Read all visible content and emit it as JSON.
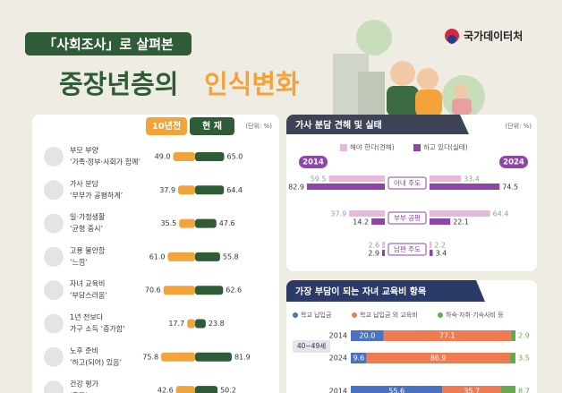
{
  "header": {
    "subtitle": "「사회조사」로 살펴본",
    "title_main": "중장년층의",
    "title_accent": "인식변화",
    "logo": "국가데이터처"
  },
  "chart_data": [
    {
      "type": "butterfly",
      "unit": "(단위: %)",
      "categories": [
        [
          "부모 부양",
          "‘가족·정부·사회가 함께’"
        ],
        [
          "가사 분담",
          "‘부부가 공평하게’"
        ],
        [
          "일·가정생활",
          "‘균형 중시’"
        ],
        [
          "고용 불안함",
          "‘느낌’"
        ],
        [
          "자녀 교육비",
          "‘부담스러움’"
        ],
        [
          "1년 전보다",
          "가구 소득 ‘증가함’"
        ],
        [
          "노후 준비",
          "‘하고(되어) 있음’"
        ],
        [
          "건강 평가",
          "‘좋음’"
        ]
      ],
      "series": [
        {
          "name": "10년전",
          "color": "#f2a33a",
          "values": [
            49.0,
            37.9,
            35.5,
            61.0,
            70.6,
            17.7,
            75.8,
            42.6
          ],
          "value_labels": [
            "49.0",
            "37.9",
            "35.5",
            "61.0",
            "70.6",
            "17.7",
            "75.8",
            "42.6"
          ]
        },
        {
          "name": "현 재",
          "color": "#2f5b36",
          "values": [
            65.0,
            64.4,
            47.6,
            55.8,
            62.6,
            23.8,
            81.9,
            50.2
          ],
          "value_labels": [
            "65.0",
            "64.4",
            "47.6",
            "55.8",
            "62.6",
            "23.8",
            "81.9",
            "50.2"
          ]
        }
      ]
    },
    {
      "type": "butterfly-grouped",
      "title": "가사 분담 견해 및 실태",
      "unit": "(단위: %)",
      "categories": [
        "아내 주도",
        "부부 공평",
        "남편 주도"
      ],
      "series": [
        {
          "name": "해야 한다(견해)",
          "color": "#e9b6dc"
        },
        {
          "name": "하고 있다(실태)",
          "color": "#8e44a8"
        }
      ],
      "panels": [
        {
          "label": "2014",
          "values": [
            [
              59.5,
              37.9,
              2.6
            ],
            [
              82.9,
              14.2,
              2.9
            ]
          ]
        },
        {
          "label": "2024",
          "values": [
            [
              33.4,
              64.4,
              2.2
            ],
            [
              74.5,
              22.1,
              3.4
            ]
          ]
        }
      ]
    },
    {
      "type": "stacked-bar",
      "title": "가장 부담이 되는 자녀 교육비 항목",
      "series": [
        {
          "name": "학교 납입금",
          "color": "#4a72c4"
        },
        {
          "name": "학교 납입금 외 교육비",
          "color": "#f07b50"
        },
        {
          "name": "하숙·자취·기숙사비 등",
          "color": "#6aa84f"
        }
      ],
      "groups": [
        {
          "label": "40~49세",
          "rows": [
            {
              "label": "2014",
              "values": [
                20.0,
                77.1,
                2.9
              ],
              "value_labels": [
                "20.0",
                "77.1",
                "2.9"
              ]
            },
            {
              "label": "2024",
              "values": [
                9.6,
                86.9,
                3.5
              ],
              "value_labels": [
                "9.6",
                "86.9",
                "3.5"
              ]
            }
          ]
        },
        {
          "label": null,
          "rows": [
            {
              "label": "2014",
              "values": [
                55.6,
                35.7,
                8.7
              ],
              "value_labels": [
                "55.6",
                "35.7",
                "8.7"
              ]
            }
          ]
        }
      ]
    }
  ]
}
